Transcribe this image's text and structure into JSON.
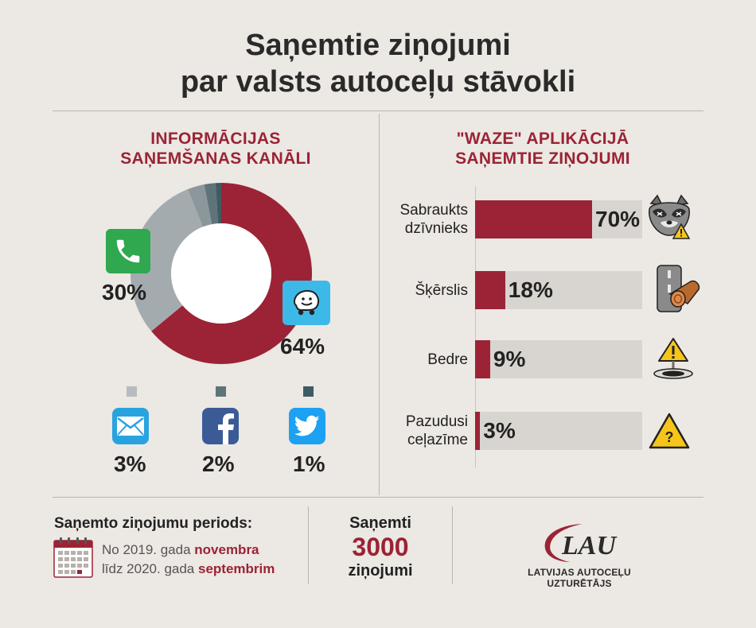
{
  "title_line1": "Saņemtie ziņojumi",
  "title_line2": "par valsts autoceļu stāvokli",
  "left": {
    "title_line1": "INFORMĀCIJAS",
    "title_line2": "SAŅEMŠANAS KANĀLI"
  },
  "right": {
    "title_line1": "\"WAZE\" APLIKĀCIJĀ",
    "title_line2": "SAŅEMTIE ZIŅOJUMI"
  },
  "chart_data": [
    {
      "type": "pie",
      "variant": "donut",
      "title": "INFORMĀCIJAS SAŅEMŠANAS KANĀLI",
      "slices": [
        {
          "label": "Waze",
          "icon": "waze-icon",
          "value": 64,
          "text": "64%",
          "color": "#9b2335"
        },
        {
          "label": "Phone",
          "icon": "phone-icon",
          "value": 30,
          "text": "30%",
          "color": "#a4abaf"
        },
        {
          "label": "E-mail",
          "icon": "mail-icon",
          "value": 3,
          "text": "3%",
          "color": "#8c979b"
        },
        {
          "label": "Facebook",
          "icon": "facebook-icon",
          "value": 2,
          "text": "2%",
          "color": "#5f7479"
        },
        {
          "label": "Twitter",
          "icon": "twitter-icon",
          "value": 1,
          "text": "1%",
          "color": "#3f5b62"
        }
      ]
    },
    {
      "type": "bar",
      "orientation": "horizontal",
      "title": "\"WAZE\" APLIKĀCIJĀ SAŅEMTIE ZIŅOJUMI",
      "categories": [
        "Sabraukts dzīvnieks",
        "Šķērslis",
        "Bedre",
        "Pazudusi ceļazīme"
      ],
      "label_lines": [
        [
          "Sabraukts",
          "dzīvnieks"
        ],
        [
          "Šķērslis"
        ],
        [
          "Bedre"
        ],
        [
          "Pazudusi",
          "ceļazīme"
        ]
      ],
      "values": [
        70,
        18,
        9,
        3
      ],
      "value_labels": [
        "70%",
        "18%",
        "9%",
        "3%"
      ],
      "icons": [
        "raccoon-warning-icon",
        "road-obstacle-icon",
        "pothole-warning-icon",
        "missing-sign-icon"
      ],
      "xlim": [
        0,
        100
      ],
      "bar_color": "#9b2335",
      "track_color": "#d8d4cf"
    }
  ],
  "footer": {
    "period_label": "Saņemto ziņojumu periods:",
    "period_line1_prefix": "No 2019. gada ",
    "period_line1_bold": "novembra",
    "period_line2_prefix": "līdz 2020. gada ",
    "period_line2_bold": "septembrim",
    "received_label": "Saņemti",
    "received_count": "3000",
    "received_unit": "ziņojumi",
    "logo_text": "LAU",
    "org_name": "LATVIJAS AUTOCEĻU UZTURĒTĀJS"
  },
  "colors": {
    "accent": "#9b2335",
    "background": "#ece8e3",
    "track": "#d8d4cf",
    "whatsapp_green": "#2fa84f",
    "waze_blue": "#3db9e8",
    "mail_blue": "#29a3e0",
    "facebook_blue": "#3b5b97",
    "twitter_blue": "#1da1f2"
  }
}
